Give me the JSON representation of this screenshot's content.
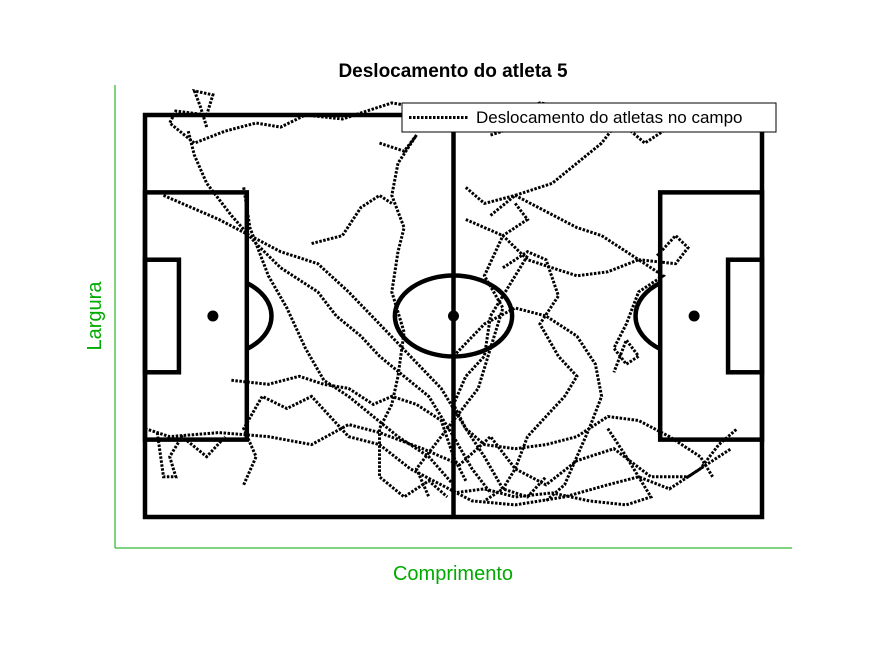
{
  "chart_data": {
    "type": "line",
    "title": "Deslocamento do atleta 5",
    "xlabel": "Comprimento",
    "ylabel": "Largura",
    "xlim": [
      -0.05,
      1.05
    ],
    "ylim": [
      -0.07,
      1.07
    ],
    "grid": false,
    "legend_position": "top-right",
    "axis_color": "#00aa00",
    "line_color": "#000000",
    "series": [
      {
        "name": "Deslocamento do atletas no campo",
        "style": "dotted",
        "segments": [
          [
            [
              0.0,
              0.22
            ],
            [
              0.04,
              0.2
            ],
            [
              0.12,
              0.21
            ],
            [
              0.2,
              0.2
            ],
            [
              0.27,
              0.18
            ],
            [
              0.33,
              0.23
            ],
            [
              0.38,
              0.21
            ],
            [
              0.45,
              0.17
            ],
            [
              0.51,
              0.13
            ],
            [
              0.56,
              0.2
            ],
            [
              0.6,
              0.12
            ],
            [
              0.65,
              0.08
            ],
            [
              0.7,
              0.14
            ],
            [
              0.76,
              0.17
            ],
            [
              0.82,
              0.1
            ],
            [
              0.88,
              0.1
            ],
            [
              0.92,
              0.14
            ],
            [
              0.95,
              0.17
            ]
          ],
          [
            [
              0.02,
              0.21
            ],
            [
              0.03,
              0.1
            ],
            [
              0.05,
              0.1
            ],
            [
              0.04,
              0.15
            ],
            [
              0.06,
              0.2
            ],
            [
              0.1,
              0.15
            ],
            [
              0.13,
              0.2
            ]
          ],
          [
            [
              0.03,
              0.8
            ],
            [
              0.12,
              0.74
            ],
            [
              0.17,
              0.7
            ],
            [
              0.22,
              0.66
            ],
            [
              0.28,
              0.63
            ],
            [
              0.33,
              0.56
            ],
            [
              0.38,
              0.48
            ],
            [
              0.43,
              0.4
            ],
            [
              0.48,
              0.32
            ],
            [
              0.52,
              0.22
            ],
            [
              0.55,
              0.15
            ],
            [
              0.58,
              0.07
            ],
            [
              0.62,
              0.05
            ],
            [
              0.65,
              0.1
            ]
          ],
          [
            [
              0.1,
              0.97
            ],
            [
              0.09,
              1.02
            ],
            [
              0.08,
              1.06
            ],
            [
              0.11,
              1.05
            ],
            [
              0.1,
              1.0
            ],
            [
              0.05,
              1.01
            ],
            [
              0.04,
              0.98
            ],
            [
              0.08,
              0.93
            ],
            [
              0.13,
              0.96
            ],
            [
              0.18,
              0.98
            ],
            [
              0.22,
              0.97
            ],
            [
              0.26,
              1.0
            ],
            [
              0.32,
              0.99
            ],
            [
              0.4,
              1.03
            ],
            [
              0.44,
              1.02
            ]
          ],
          [
            [
              0.07,
              0.96
            ],
            [
              0.08,
              0.9
            ],
            [
              0.1,
              0.83
            ],
            [
              0.14,
              0.75
            ],
            [
              0.18,
              0.68
            ],
            [
              0.22,
              0.62
            ],
            [
              0.28,
              0.56
            ],
            [
              0.31,
              0.5
            ],
            [
              0.35,
              0.45
            ],
            [
              0.38,
              0.4
            ],
            [
              0.42,
              0.35
            ],
            [
              0.46,
              0.3
            ],
            [
              0.5,
              0.2
            ],
            [
              0.53,
              0.12
            ],
            [
              0.56,
              0.06
            ]
          ],
          [
            [
              0.16,
              0.82
            ],
            [
              0.17,
              0.72
            ],
            [
              0.2,
              0.6
            ],
            [
              0.23,
              0.52
            ],
            [
              0.26,
              0.42
            ],
            [
              0.29,
              0.34
            ],
            [
              0.33,
              0.3
            ],
            [
              0.37,
              0.25
            ],
            [
              0.41,
              0.2
            ],
            [
              0.46,
              0.15
            ],
            [
              0.5,
              0.08
            ]
          ],
          [
            [
              0.38,
              0.93
            ],
            [
              0.42,
              0.91
            ],
            [
              0.44,
              0.95
            ],
            [
              0.41,
              0.88
            ],
            [
              0.4,
              0.8
            ],
            [
              0.42,
              0.72
            ],
            [
              0.41,
              0.66
            ],
            [
              0.4,
              0.56
            ],
            [
              0.42,
              0.46
            ],
            [
              0.41,
              0.35
            ],
            [
              0.4,
              0.28
            ],
            [
              0.38,
              0.22
            ],
            [
              0.38,
              0.1
            ],
            [
              0.42,
              0.05
            ],
            [
              0.46,
              0.09
            ],
            [
              0.49,
              0.05
            ]
          ],
          [
            [
              0.27,
              0.68
            ],
            [
              0.32,
              0.7
            ],
            [
              0.35,
              0.77
            ],
            [
              0.38,
              0.8
            ],
            [
              0.4,
              0.78
            ]
          ],
          [
            [
              0.14,
              0.34
            ],
            [
              0.2,
              0.33
            ],
            [
              0.25,
              0.35
            ],
            [
              0.29,
              0.33
            ],
            [
              0.33,
              0.32
            ],
            [
              0.37,
              0.28
            ],
            [
              0.4,
              0.3
            ],
            [
              0.44,
              0.28
            ],
            [
              0.48,
              0.24
            ],
            [
              0.5,
              0.15
            ],
            [
              0.52,
              0.09
            ]
          ],
          [
            [
              0.16,
              0.08
            ],
            [
              0.18,
              0.15
            ],
            [
              0.16,
              0.22
            ],
            [
              0.19,
              0.3
            ],
            [
              0.23,
              0.27
            ],
            [
              0.27,
              0.3
            ],
            [
              0.3,
              0.25
            ],
            [
              0.33,
              0.2
            ],
            [
              0.38,
              0.18
            ],
            [
              0.43,
              0.12
            ],
            [
              0.48,
              0.08
            ],
            [
              0.53,
              0.04
            ],
            [
              0.6,
              0.03
            ],
            [
              0.68,
              0.05
            ],
            [
              0.75,
              0.08
            ],
            [
              0.8,
              0.1
            ],
            [
              0.85,
              0.07
            ],
            [
              0.9,
              0.12
            ],
            [
              0.93,
              0.18
            ],
            [
              0.96,
              0.22
            ]
          ],
          [
            [
              0.52,
              0.82
            ],
            [
              0.55,
              0.78
            ],
            [
              0.6,
              0.8
            ],
            [
              0.65,
              0.76
            ],
            [
              0.7,
              0.72
            ],
            [
              0.74,
              0.7
            ],
            [
              0.8,
              0.64
            ],
            [
              0.86,
              0.63
            ],
            [
              0.88,
              0.67
            ],
            [
              0.86,
              0.7
            ],
            [
              0.83,
              0.65
            ]
          ],
          [
            [
              0.52,
              0.74
            ],
            [
              0.58,
              0.7
            ],
            [
              0.62,
              0.64
            ],
            [
              0.66,
              0.62
            ],
            [
              0.7,
              0.6
            ],
            [
              0.75,
              0.61
            ],
            [
              0.8,
              0.64
            ],
            [
              0.84,
              0.6
            ],
            [
              0.8,
              0.56
            ],
            [
              0.78,
              0.48
            ],
            [
              0.76,
              0.42
            ],
            [
              0.78,
              0.38
            ],
            [
              0.8,
              0.4
            ],
            [
              0.78,
              0.44
            ],
            [
              0.76,
              0.36
            ]
          ],
          [
            [
              0.58,
              0.62
            ],
            [
              0.62,
              0.66
            ],
            [
              0.65,
              0.64
            ],
            [
              0.67,
              0.55
            ],
            [
              0.64,
              0.48
            ],
            [
              0.67,
              0.4
            ],
            [
              0.7,
              0.35
            ],
            [
              0.68,
              0.3
            ],
            [
              0.65,
              0.25
            ],
            [
              0.62,
              0.2
            ],
            [
              0.6,
              0.12
            ],
            [
              0.58,
              0.07
            ],
            [
              0.55,
              0.04
            ]
          ],
          [
            [
              0.5,
              0.4
            ],
            [
              0.55,
              0.48
            ],
            [
              0.6,
              0.52
            ],
            [
              0.65,
              0.5
            ],
            [
              0.7,
              0.45
            ],
            [
              0.73,
              0.38
            ],
            [
              0.74,
              0.3
            ],
            [
              0.72,
              0.22
            ],
            [
              0.7,
              0.15
            ],
            [
              0.68,
              0.08
            ],
            [
              0.65,
              0.04
            ]
          ],
          [
            [
              0.6,
              0.78
            ],
            [
              0.62,
              0.74
            ],
            [
              0.58,
              0.7
            ],
            [
              0.55,
              0.6
            ],
            [
              0.58,
              0.52
            ],
            [
              0.56,
              0.42
            ],
            [
              0.54,
              0.32
            ],
            [
              0.5,
              0.24
            ],
            [
              0.47,
              0.18
            ],
            [
              0.44,
              0.12
            ],
            [
              0.46,
              0.05
            ]
          ],
          [
            [
              0.56,
              0.75
            ],
            [
              0.6,
              0.8
            ],
            [
              0.66,
              0.83
            ],
            [
              0.7,
              0.88
            ],
            [
              0.74,
              0.93
            ],
            [
              0.76,
              0.97
            ],
            [
              0.78,
              1.0
            ]
          ],
          [
            [
              0.56,
              0.95
            ],
            [
              0.58,
              0.96
            ],
            [
              0.62,
              0.98
            ],
            [
              0.66,
              0.97
            ],
            [
              0.7,
              0.99
            ],
            [
              0.74,
              0.96
            ],
            [
              0.78,
              0.97
            ],
            [
              0.81,
              0.93
            ],
            [
              0.84,
              0.96
            ],
            [
              0.88,
              0.97
            ]
          ],
          [
            [
              0.52,
              1.02
            ],
            [
              0.54,
              0.98
            ],
            [
              0.56,
              1.01
            ],
            [
              0.6,
              1.0
            ],
            [
              0.64,
              1.03
            ],
            [
              0.68,
              1.02
            ]
          ],
          [
            [
              0.62,
              0.65
            ],
            [
              0.6,
              0.6
            ],
            [
              0.56,
              0.5
            ],
            [
              0.55,
              0.4
            ],
            [
              0.52,
              0.35
            ],
            [
              0.5,
              0.28
            ],
            [
              0.52,
              0.22
            ],
            [
              0.55,
              0.18
            ],
            [
              0.6,
              0.17
            ],
            [
              0.65,
              0.18
            ],
            [
              0.7,
              0.2
            ],
            [
              0.75,
              0.25
            ],
            [
              0.8,
              0.24
            ],
            [
              0.85,
              0.2
            ],
            [
              0.9,
              0.15
            ],
            [
              0.92,
              0.1
            ]
          ],
          [
            [
              0.75,
              0.22
            ],
            [
              0.78,
              0.15
            ],
            [
              0.8,
              0.1
            ],
            [
              0.82,
              0.05
            ],
            [
              0.78,
              0.03
            ],
            [
              0.72,
              0.04
            ],
            [
              0.66,
              0.06
            ],
            [
              0.6,
              0.05
            ],
            [
              0.55,
              0.07
            ],
            [
              0.5,
              0.06
            ]
          ]
        ]
      }
    ],
    "pitch": {
      "length": 1.0,
      "width": 1.0,
      "penalty_box": {
        "depth": 0.165,
        "width": 0.615
      },
      "goal_box": {
        "depth": 0.055,
        "width": 0.28
      },
      "center_circle_radius": 0.095,
      "penalty_spot_depth": 0.11,
      "penalty_arc_radius": 0.095
    }
  }
}
